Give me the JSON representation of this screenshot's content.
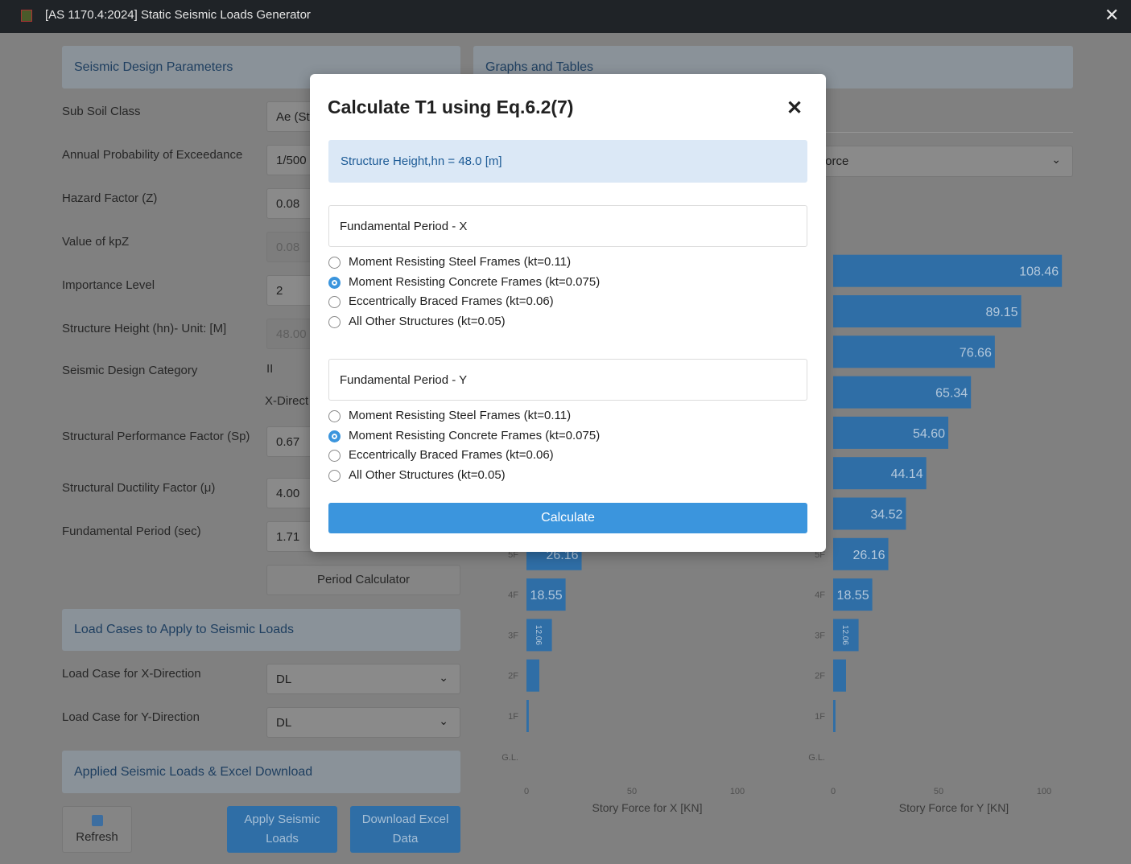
{
  "window": {
    "title": "[AS 1170.4:2024] Static Seismic Loads Generator"
  },
  "design_parameters": {
    "heading": "Seismic Design Parameters",
    "fields": [
      {
        "label": "Sub Soil Class",
        "value": "Ae (St"
      },
      {
        "label": "Annual Probability of Exceedance",
        "value": "1/500"
      },
      {
        "label": "Hazard Factor (Z)",
        "value": "0.08"
      },
      {
        "label": "Value of kpZ",
        "value": "0.08",
        "disabled": true
      },
      {
        "label": "Importance Level",
        "value": "2"
      },
      {
        "label": "Structure Height (hn)- Unit: [M]",
        "value": "48.00",
        "disabled": true
      },
      {
        "label": "Seismic Design Category",
        "value": "II",
        "plain": true
      },
      {
        "label": "Structural Performance Factor (Sp)",
        "value": "0.67"
      },
      {
        "label": "Structural Ductility Factor (μ)",
        "value": "4.00"
      },
      {
        "label": "Fundamental Period (sec)",
        "value": "1.71"
      }
    ],
    "direction_label": "X-Direct",
    "button": "Period Calculator"
  },
  "load_cases": {
    "heading": "Load Cases to Apply to Seismic Loads",
    "fields": [
      {
        "label": "Load Case for X-Direction",
        "value": "DL"
      },
      {
        "label": "Load Case for Y-Direction",
        "value": "DL"
      }
    ]
  },
  "applied_loads": {
    "heading": "Applied Seismic Loads & Excel Download",
    "buttons": [
      "Refresh",
      "Apply Seismic Loads",
      "Download Excel Data"
    ]
  },
  "graphs": {
    "heading": "Graphs and Tables",
    "select": "Force",
    "charts": [
      {
        "type": "bar",
        "categories": [
          "5F",
          "4F",
          "3F",
          "2F",
          "1F"
        ],
        "values": [
          26.16,
          18.55,
          12.06,
          6.1,
          1.1
        ],
        "value_labels": [
          "26.16",
          "18.55",
          "12.06",
          null,
          null
        ],
        "xlim": [
          0,
          100
        ],
        "xticks": [
          0,
          50,
          100
        ],
        "x_label": "Story Force for X [KN]",
        "base_label": "G.L.",
        "color": "#2f6ea6"
      },
      {
        "type": "bar",
        "categories": [
          null,
          null,
          null,
          null,
          null,
          null,
          null,
          "5F",
          "4F",
          "3F",
          "2F",
          "1F"
        ],
        "values": [
          108.46,
          89.15,
          76.66,
          65.34,
          54.6,
          44.14,
          34.52,
          26.16,
          18.55,
          12.06,
          6.1,
          1.1
        ],
        "value_labels": [
          "108.46",
          "89.15",
          "76.66",
          "65.34",
          "54.60",
          "44.14",
          "34.52",
          "26.16",
          "18.55",
          "12.06",
          null,
          null
        ],
        "xlim": [
          0,
          100
        ],
        "xticks": [
          0,
          50,
          100
        ],
        "x_label": "Story Force for Y [KN]",
        "base_label": "G.L.",
        "color": "#2f6ea6"
      }
    ]
  },
  "modal": {
    "title": "Calculate T1 using Eq.6.2(7)",
    "info": "Structure Height,hn = 48.0 [m]",
    "groups": [
      {
        "title": "Fundamental Period - X",
        "options": [
          "Moment Resisting Steel Frames (kt=0.11)",
          "Moment Resisting Concrete Frames (kt=0.075)",
          "Eccentrically Braced Frames (kt=0.06)",
          "All Other Structures (kt=0.05)"
        ],
        "selected": 1
      },
      {
        "title": "Fundamental Period - Y",
        "options": [
          "Moment Resisting Steel Frames (kt=0.11)",
          "Moment Resisting Concrete Frames (kt=0.075)",
          "Eccentrically Braced Frames (kt=0.06)",
          "All Other Structures (kt=0.05)"
        ],
        "selected": 1
      }
    ],
    "button": "Calculate"
  }
}
